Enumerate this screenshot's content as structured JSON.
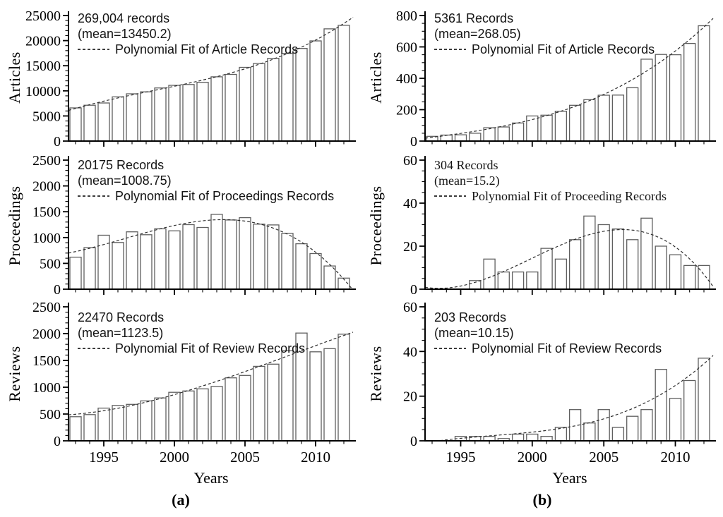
{
  "figure": {
    "background": "#ffffff",
    "axis_color": "#000000",
    "bar_fill": "#ffffff",
    "bar_stroke": "#5f5f5f",
    "fit_color": "#2e2e2e",
    "text_color": "#000000",
    "xlabel": "Years",
    "captions": {
      "a": "(a)",
      "b": "(b)"
    }
  },
  "years": [
    1993,
    1994,
    1995,
    1996,
    1997,
    1998,
    1999,
    2000,
    2001,
    2002,
    2003,
    2004,
    2005,
    2006,
    2007,
    2008,
    2009,
    2010,
    2011,
    2012
  ],
  "xticks": [
    1995,
    2000,
    2005,
    2010
  ],
  "chart_data": [
    {
      "id": "a-articles",
      "panel": "a",
      "type": "bar",
      "ylabel": "Articles",
      "records_label": "269,004 records",
      "mean_label": "(mean=13450.2)",
      "fit_legend": "Polynomial Fit of Article Records",
      "fit_style": "dashed",
      "ylim": [
        0,
        25000
      ],
      "ytick_major": 5000,
      "ytick_minor": 1000,
      "values": [
        6600,
        7130,
        7590,
        8800,
        9410,
        9810,
        10580,
        11090,
        11270,
        11700,
        12800,
        13270,
        14670,
        15460,
        16480,
        17460,
        18440,
        19940,
        22350,
        23050
      ]
    },
    {
      "id": "a-proceedings",
      "panel": "a",
      "type": "bar",
      "ylabel": "Proceedings",
      "records_label": "20175 Records",
      "mean_label": "(mean=1008.75)",
      "fit_legend": "Polynomial Fit of Proceedings Records",
      "fit_style": "dashed",
      "ylim": [
        0,
        2500
      ],
      "ytick_major": 500,
      "ytick_minor": 100,
      "values": [
        620,
        805,
        1045,
        905,
        1110,
        1055,
        1170,
        1130,
        1250,
        1195,
        1450,
        1340,
        1385,
        1260,
        1245,
        1080,
        880,
        690,
        450,
        215
      ]
    },
    {
      "id": "a-reviews",
      "panel": "a",
      "type": "bar",
      "ylabel": "Reviews",
      "records_label": "22470 Records",
      "mean_label": "(mean=1123.5)",
      "fit_legend": "Polynomial Fit of Review Records",
      "fit_style": "dashed",
      "ylim": [
        0,
        2500
      ],
      "ytick_major": 500,
      "ytick_minor": 100,
      "values": [
        450,
        490,
        610,
        660,
        680,
        745,
        800,
        905,
        930,
        970,
        1015,
        1175,
        1220,
        1390,
        1430,
        1680,
        2010,
        1660,
        1720,
        1990
      ]
    },
    {
      "id": "b-articles",
      "panel": "b",
      "type": "bar",
      "ylabel": "Articles",
      "records_label": "5361 Records",
      "mean_label": "(mean=268.05)",
      "fit_legend": "Polynomial Fit of Article Records",
      "fit_style": "dashed",
      "ylim": [
        0,
        800
      ],
      "ytick_major": 200,
      "ytick_minor": 50,
      "values": [
        30,
        38,
        40,
        50,
        85,
        90,
        115,
        160,
        165,
        190,
        228,
        264,
        292,
        293,
        340,
        522,
        552,
        550,
        622,
        735
      ]
    },
    {
      "id": "b-proceedings",
      "panel": "b",
      "type": "bar",
      "ylabel": "Proceedings",
      "records_label": "304 Records",
      "mean_label": "(mean=15.2)",
      "fit_legend": "Polynomial Fit of Proceeding Records",
      "fit_style": "dashed",
      "ylim": [
        0,
        60
      ],
      "ytick_major": 20,
      "ytick_minor": 5,
      "values": [
        0,
        0,
        0,
        4,
        14,
        8,
        8,
        8,
        19,
        14,
        23,
        34,
        30,
        28,
        23,
        33,
        20,
        16,
        11,
        11
      ]
    },
    {
      "id": "b-reviews",
      "panel": "b",
      "type": "bar",
      "ylabel": "Reviews",
      "records_label": "203 Records",
      "mean_label": "(mean=10.15)",
      "fit_legend": "Polynomial Fit of Review Records",
      "fit_style": "dashed",
      "ylim": [
        0,
        60
      ],
      "ytick_major": 20,
      "ytick_minor": 5,
      "values": [
        0,
        0,
        2,
        2,
        2,
        1,
        3,
        3,
        2,
        6,
        14,
        8,
        14,
        6,
        11,
        14,
        32,
        19,
        27,
        37
      ]
    }
  ]
}
